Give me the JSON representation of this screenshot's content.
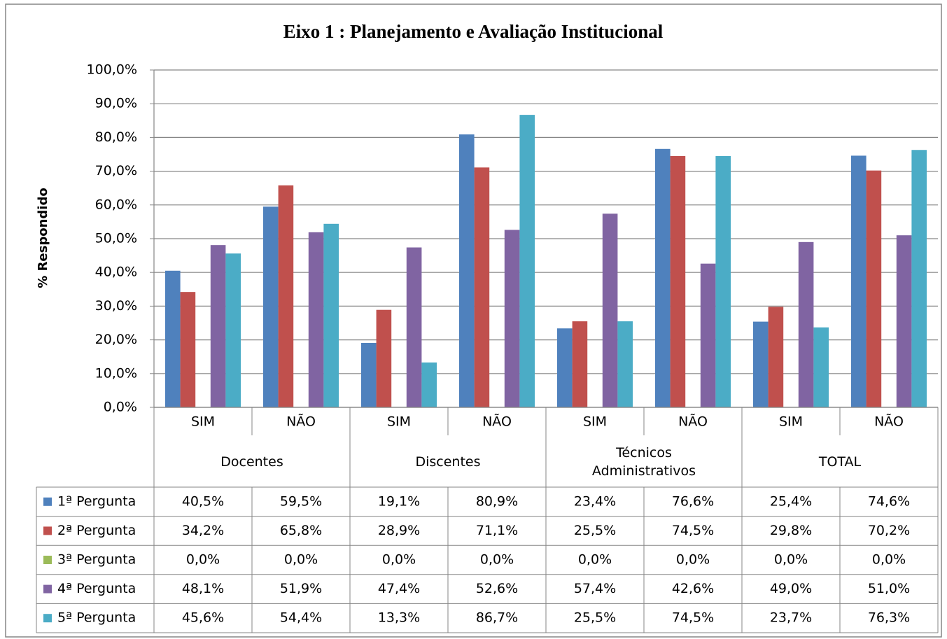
{
  "chart_data": {
    "type": "bar",
    "title": "Eixo 1 : Planejamento e Avaliação Institucional",
    "y_label": "% Respondido",
    "categories": [
      "SIM",
      "NÃO",
      "SIM",
      "NÃO",
      "SIM",
      "NÃO",
      "SIM",
      "NÃO"
    ],
    "groups": [
      "Docentes",
      "Discentes",
      "Técnicos Administrativos",
      "TOTAL"
    ],
    "series": [
      {
        "name": "1ª Pergunta",
        "color": "#4f81bd",
        "values": [
          40.5,
          59.5,
          19.1,
          80.9,
          23.4,
          76.6,
          25.4,
          74.6
        ],
        "value_labels": [
          "40,5%",
          "59,5%",
          "19,1%",
          "80,9%",
          "23,4%",
          "76,6%",
          "25,4%",
          "74,6%"
        ]
      },
      {
        "name": "2ª Pergunta",
        "color": "#c0504d",
        "values": [
          34.2,
          65.8,
          28.9,
          71.1,
          25.5,
          74.5,
          29.8,
          70.2
        ],
        "value_labels": [
          "34,2%",
          "65,8%",
          "28,9%",
          "71,1%",
          "25,5%",
          "74,5%",
          "29,8%",
          "70,2%"
        ]
      },
      {
        "name": "3ª Pergunta",
        "color": "#9bbb59",
        "values": [
          0,
          0,
          0,
          0,
          0,
          0,
          0,
          0
        ],
        "value_labels": [
          "0,0%",
          "0,0%",
          "0,0%",
          "0,0%",
          "0,0%",
          "0,0%",
          "0,0%",
          "0,0%"
        ]
      },
      {
        "name": "4ª Pergunta",
        "color": "#8064a2",
        "values": [
          48.1,
          51.9,
          47.4,
          52.6,
          57.4,
          42.6,
          49.0,
          51.0
        ],
        "value_labels": [
          "48,1%",
          "51,9%",
          "47,4%",
          "52,6%",
          "57,4%",
          "42,6%",
          "49,0%",
          "51,0%"
        ]
      },
      {
        "name": "5ª Pergunta",
        "color": "#4bacc6",
        "values": [
          45.6,
          54.4,
          13.3,
          86.7,
          25.5,
          74.5,
          23.7,
          76.3
        ],
        "value_labels": [
          "45,6%",
          "54,4%",
          "13,3%",
          "86,7%",
          "25,5%",
          "74,5%",
          "23,7%",
          "76,3%"
        ]
      }
    ],
    "ylim": [
      0,
      100
    ],
    "yticks": [
      {
        "value": 0,
        "label": "0,0%"
      },
      {
        "value": 10,
        "label": "10,0%"
      },
      {
        "value": 20,
        "label": "20,0%"
      },
      {
        "value": 30,
        "label": "30,0%"
      },
      {
        "value": 40,
        "label": "40,0%"
      },
      {
        "value": 50,
        "label": "50,0%"
      },
      {
        "value": 60,
        "label": "60,0%"
      },
      {
        "value": 70,
        "label": "70,0%"
      },
      {
        "value": 80,
        "label": "80,0%"
      },
      {
        "value": 90,
        "label": "90,0%"
      },
      {
        "value": 100,
        "label": "100,0%"
      }
    ],
    "grid": true
  }
}
